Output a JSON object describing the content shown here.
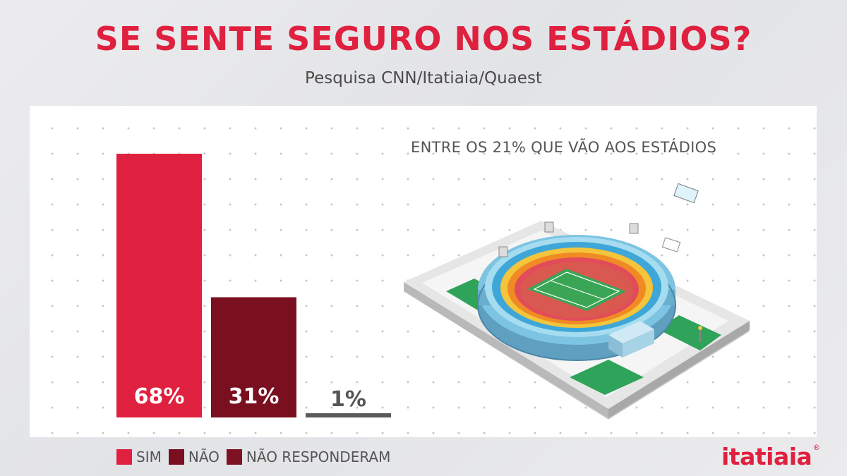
{
  "header": {
    "title": "SE SENTE SEGURO NOS ESTÁDIOS?",
    "subtitle": "Pesquisa CNN/Itatiaia/Quaest"
  },
  "annotation": "ENTRE OS 21% QUE VÃO AOS ESTÁDIOS",
  "brand": {
    "name": "itatiaia",
    "mark": "®"
  },
  "colors": {
    "red": "#e0203f",
    "dark_red": "#7a0f1f",
    "gray": "#5a5a5a",
    "legend_dark": "#7d1322"
  },
  "chart_data": {
    "type": "bar",
    "categories": [
      "SIM",
      "NÃO",
      "NÃO RESPONDERAM"
    ],
    "values": [
      68,
      31,
      1
    ],
    "labels": [
      "68%",
      "31%",
      "1%"
    ],
    "unit": "%",
    "ylim": [
      0,
      68
    ],
    "grid": false,
    "legend_position": "bottom-left",
    "legend": [
      "SIM",
      "NÃO",
      "NÃO RESPONDERAM"
    ]
  }
}
